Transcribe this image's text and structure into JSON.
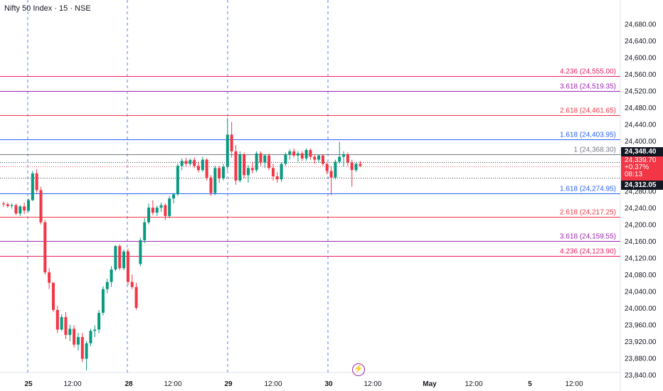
{
  "header": {
    "ticker": "Nifty 50 Index · 15 · NSE"
  },
  "badges": {
    "price_high": "24,348.40",
    "last_price": "24,339.70",
    "last_change": "+0.37%",
    "last_countdown": "08:13",
    "price_low": "24,312.05"
  },
  "colors": {
    "up": "#089981",
    "down": "#f23645",
    "fib_4236": "#e91e63",
    "fib_3618": "#9c27b0",
    "fib_2618": "#f23645",
    "fib_1618": "#2962ff",
    "fib_1": "#787b86",
    "session_line": "#2962ff"
  },
  "chart_data": {
    "type": "candlestick",
    "title": "Nifty 50 Index · 15 · NSE",
    "ylim": [
      23840,
      24700
    ],
    "y_ticks": [
      23840,
      23880,
      23920,
      23960,
      24000,
      24040,
      24080,
      24120,
      24160,
      24200,
      24240,
      24280,
      24320,
      24360,
      24400,
      24440,
      24480,
      24520,
      24560,
      24600,
      24640,
      24680
    ],
    "y_tick_labels": [
      "23,840.00",
      "23,880.00",
      "23,920.00",
      "23,960.00",
      "24,000.00",
      "24,040.00",
      "24,080.00",
      "24,120.00",
      "24,160.00",
      "24,200.00",
      "24,240.00",
      "24,280.00",
      "24,320.00",
      "24,360.00",
      "24,400.00",
      "24,440.00",
      "24,480.00",
      "24,520.00",
      "24,560.00",
      "24,600.00",
      "24,640.00",
      "24,680.00"
    ],
    "x_labels": [
      "25",
      "12:00",
      "28",
      "12:00",
      "29",
      "12:00",
      "30",
      "12:00",
      "May",
      "12:00",
      "5",
      "12:00"
    ],
    "x_label_bold": [
      "25",
      "28",
      "29",
      "30",
      "May",
      "5"
    ],
    "session_breaks": [
      "25",
      "28",
      "29",
      "30"
    ],
    "fib_levels": [
      {
        "label": "4.236 (24,555.00)",
        "value": 24555.0,
        "color": "#e91e63"
      },
      {
        "label": "3.618 (24,519.35)",
        "value": 24519.35,
        "color": "#9c27b0"
      },
      {
        "label": "2.618 (24,461.65)",
        "value": 24461.65,
        "color": "#f23645"
      },
      {
        "label": "1.618 (24,403.95)",
        "value": 24403.95,
        "color": "#2962ff"
      },
      {
        "label": "1 (24,368.30)",
        "value": 24368.3,
        "color": "#787b86"
      },
      {
        "label": "1.618 (24,274.95)",
        "value": 24274.95,
        "color": "#2962ff"
      },
      {
        "label": "2.618 (24,217.25)",
        "value": 24217.25,
        "color": "#f23645"
      },
      {
        "label": "3.618 (24,159.55)",
        "value": 24159.55,
        "color": "#9c27b0"
      },
      {
        "label": "4.236 (24,123.90)",
        "value": 24123.9,
        "color": "#e91e63"
      }
    ],
    "reference_lines": [
      {
        "value": 24348.4,
        "style": "dotted",
        "color": "#131722"
      },
      {
        "value": 24339.7,
        "style": "dotted",
        "color": "#f23645"
      },
      {
        "value": 24312.05,
        "style": "dotted",
        "color": "#131722"
      }
    ],
    "candles": [
      {
        "o": 24250,
        "h": 24255,
        "l": 24242,
        "c": 24248
      },
      {
        "o": 24248,
        "h": 24252,
        "l": 24240,
        "c": 24244
      },
      {
        "o": 24244,
        "h": 24250,
        "l": 24238,
        "c": 24246
      },
      {
        "o": 24246,
        "h": 24250,
        "l": 24222,
        "c": 24226
      },
      {
        "o": 24226,
        "h": 24246,
        "l": 24220,
        "c": 24243
      },
      {
        "o": 24243,
        "h": 24252,
        "l": 24225,
        "c": 24233
      },
      {
        "o": 24233,
        "h": 24262,
        "l": 24230,
        "c": 24258
      },
      {
        "o": 24258,
        "h": 24328,
        "l": 24256,
        "c": 24322
      },
      {
        "o": 24322,
        "h": 24332,
        "l": 24275,
        "c": 24282
      },
      {
        "o": 24282,
        "h": 24290,
        "l": 24200,
        "c": 24205
      },
      {
        "o": 24205,
        "h": 24210,
        "l": 24080,
        "c": 24085
      },
      {
        "o": 24085,
        "h": 24095,
        "l": 24045,
        "c": 24060
      },
      {
        "o": 24060,
        "h": 24062,
        "l": 23990,
        "c": 23995
      },
      {
        "o": 23995,
        "h": 24005,
        "l": 23940,
        "c": 23948
      },
      {
        "o": 23948,
        "h": 23985,
        "l": 23945,
        "c": 23978
      },
      {
        "o": 23978,
        "h": 23990,
        "l": 23925,
        "c": 23935
      },
      {
        "o": 23935,
        "h": 23960,
        "l": 23920,
        "c": 23950
      },
      {
        "o": 23950,
        "h": 23958,
        "l": 23905,
        "c": 23912
      },
      {
        "o": 23912,
        "h": 23940,
        "l": 23898,
        "c": 23930
      },
      {
        "o": 23930,
        "h": 23940,
        "l": 23870,
        "c": 23878
      },
      {
        "o": 23878,
        "h": 23920,
        "l": 23850,
        "c": 23915
      },
      {
        "o": 23915,
        "h": 23950,
        "l": 23908,
        "c": 23945
      },
      {
        "o": 23945,
        "h": 23958,
        "l": 23930,
        "c": 23948
      },
      {
        "o": 23948,
        "h": 23995,
        "l": 23940,
        "c": 23988
      },
      {
        "o": 23988,
        "h": 24052,
        "l": 23982,
        "c": 24045
      },
      {
        "o": 24045,
        "h": 24070,
        "l": 24035,
        "c": 24062
      },
      {
        "o": 24062,
        "h": 24100,
        "l": 24050,
        "c": 24092
      },
      {
        "o": 24092,
        "h": 24150,
        "l": 24088,
        "c": 24148
      },
      {
        "o": 24148,
        "h": 24152,
        "l": 24090,
        "c": 24095
      },
      {
        "o": 24095,
        "h": 24140,
        "l": 24090,
        "c": 24135
      },
      {
        "o": 24135,
        "h": 24142,
        "l": 24055,
        "c": 24062
      },
      {
        "o": 24062,
        "h": 24080,
        "l": 24045,
        "c": 24050
      },
      {
        "o": 24050,
        "h": 24060,
        "l": 23995,
        "c": 24000
      },
      {
        "o": 24105,
        "h": 24168,
        "l": 24100,
        "c": 24162
      },
      {
        "o": 24162,
        "h": 24215,
        "l": 24155,
        "c": 24205
      },
      {
        "o": 24205,
        "h": 24250,
        "l": 24200,
        "c": 24240
      },
      {
        "o": 24240,
        "h": 24258,
        "l": 24222,
        "c": 24228
      },
      {
        "o": 24228,
        "h": 24245,
        "l": 24220,
        "c": 24240
      },
      {
        "o": 24240,
        "h": 24252,
        "l": 24230,
        "c": 24246
      },
      {
        "o": 24246,
        "h": 24250,
        "l": 24210,
        "c": 24220
      },
      {
        "o": 24220,
        "h": 24268,
        "l": 24215,
        "c": 24262
      },
      {
        "o": 24262,
        "h": 24275,
        "l": 24250,
        "c": 24272
      },
      {
        "o": 24272,
        "h": 24345,
        "l": 24268,
        "c": 24340
      },
      {
        "o": 24340,
        "h": 24358,
        "l": 24330,
        "c": 24352
      },
      {
        "o": 24352,
        "h": 24360,
        "l": 24338,
        "c": 24345
      },
      {
        "o": 24345,
        "h": 24358,
        "l": 24340,
        "c": 24354
      },
      {
        "o": 24354,
        "h": 24360,
        "l": 24335,
        "c": 24340
      },
      {
        "o": 24340,
        "h": 24350,
        "l": 24325,
        "c": 24330
      },
      {
        "o": 24330,
        "h": 24362,
        "l": 24326,
        "c": 24355
      },
      {
        "o": 24355,
        "h": 24358,
        "l": 24305,
        "c": 24312
      },
      {
        "o": 24312,
        "h": 24318,
        "l": 24268,
        "c": 24275
      },
      {
        "o": 24275,
        "h": 24340,
        "l": 24270,
        "c": 24335
      },
      {
        "o": 24335,
        "h": 24340,
        "l": 24300,
        "c": 24310
      },
      {
        "o": 24310,
        "h": 24345,
        "l": 24305,
        "c": 24338
      },
      {
        "o": 24338,
        "h": 24455,
        "l": 24330,
        "c": 24415
      },
      {
        "o": 24415,
        "h": 24445,
        "l": 24360,
        "c": 24375
      },
      {
        "o": 24375,
        "h": 24390,
        "l": 24295,
        "c": 24305
      },
      {
        "o": 24305,
        "h": 24375,
        "l": 24300,
        "c": 24368
      },
      {
        "o": 24368,
        "h": 24372,
        "l": 24310,
        "c": 24318
      },
      {
        "o": 24318,
        "h": 24342,
        "l": 24300,
        "c": 24335
      },
      {
        "o": 24335,
        "h": 24350,
        "l": 24322,
        "c": 24330
      },
      {
        "o": 24330,
        "h": 24375,
        "l": 24325,
        "c": 24370
      },
      {
        "o": 24370,
        "h": 24375,
        "l": 24340,
        "c": 24348
      },
      {
        "o": 24348,
        "h": 24368,
        "l": 24335,
        "c": 24365
      },
      {
        "o": 24365,
        "h": 24370,
        "l": 24330,
        "c": 24335
      },
      {
        "o": 24335,
        "h": 24345,
        "l": 24305,
        "c": 24315
      },
      {
        "o": 24315,
        "h": 24325,
        "l": 24300,
        "c": 24308
      },
      {
        "o": 24308,
        "h": 24348,
        "l": 24302,
        "c": 24345
      },
      {
        "o": 24345,
        "h": 24372,
        "l": 24340,
        "c": 24368
      },
      {
        "o": 24368,
        "h": 24380,
        "l": 24355,
        "c": 24375
      },
      {
        "o": 24375,
        "h": 24382,
        "l": 24360,
        "c": 24365
      },
      {
        "o": 24365,
        "h": 24375,
        "l": 24350,
        "c": 24370
      },
      {
        "o": 24370,
        "h": 24376,
        "l": 24352,
        "c": 24358
      },
      {
        "o": 24358,
        "h": 24382,
        "l": 24352,
        "c": 24378
      },
      {
        "o": 24378,
        "h": 24382,
        "l": 24355,
        "c": 24362
      },
      {
        "o": 24362,
        "h": 24368,
        "l": 24345,
        "c": 24355
      },
      {
        "o": 24355,
        "h": 24368,
        "l": 24348,
        "c": 24365
      },
      {
        "o": 24365,
        "h": 24368,
        "l": 24340,
        "c": 24345
      },
      {
        "o": 24345,
        "h": 24350,
        "l": 24320,
        "c": 24328
      },
      {
        "o": 24328,
        "h": 24340,
        "l": 24270,
        "c": 24312
      },
      {
        "o": 24312,
        "h": 24355,
        "l": 24308,
        "c": 24350
      },
      {
        "o": 24350,
        "h": 24398,
        "l": 24345,
        "c": 24362
      },
      {
        "o": 24362,
        "h": 24375,
        "l": 24338,
        "c": 24368
      },
      {
        "o": 24368,
        "h": 24372,
        "l": 24340,
        "c": 24348
      },
      {
        "o": 24348,
        "h": 24355,
        "l": 24290,
        "c": 24330
      },
      {
        "o": 24330,
        "h": 24348,
        "l": 24325,
        "c": 24345
      },
      {
        "o": 24345,
        "h": 24352,
        "l": 24338,
        "c": 24340
      }
    ]
  }
}
